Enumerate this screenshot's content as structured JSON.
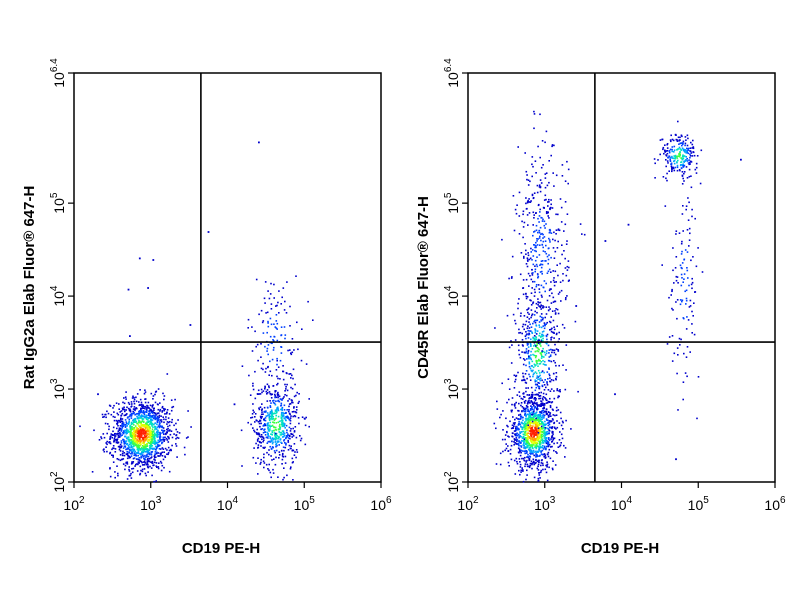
{
  "chart_data": [
    {
      "type": "scatter",
      "xlabel": "CD19 PE-H",
      "ylabel": "Rat IgG2a Elab Fluor® 647-H",
      "x_scale": "log",
      "y_scale": "log",
      "xlim": [
        100,
        1000000
      ],
      "ylim": [
        100,
        2511886
      ],
      "x_ticks": [
        {
          "base": "10",
          "exp": "2"
        },
        {
          "base": "10",
          "exp": "3"
        },
        {
          "base": "10",
          "exp": "4"
        },
        {
          "base": "10",
          "exp": "5"
        },
        {
          "base": "10",
          "exp": "6"
        }
      ],
      "y_ticks": [
        {
          "base": "10",
          "exp": "2"
        },
        {
          "base": "10",
          "exp": "3"
        },
        {
          "base": "10",
          "exp": "4"
        },
        {
          "base": "10",
          "exp": "5"
        },
        {
          "base": "10",
          "exp": "6.4"
        }
      ],
      "gate": {
        "x": 4500,
        "y": 3200
      },
      "populations": [
        {
          "x": 750,
          "y": 330,
          "spread_x_decades": 0.2,
          "spread_y_decades": 0.19,
          "count": 1400,
          "density": "high"
        },
        {
          "x": 42000,
          "y": 420,
          "spread_x_decades": 0.15,
          "spread_y_decades": 0.24,
          "count": 560,
          "density": "medium"
        },
        {
          "x": 40000,
          "y": 3500,
          "spread_x_decades": 0.18,
          "spread_y_decades": 0.35,
          "count": 140,
          "density": "low"
        }
      ],
      "outliers": [
        {
          "x": 25000,
          "y": 460000
        },
        {
          "x": 700,
          "y": 26000
        },
        {
          "x": 1050,
          "y": 25000
        },
        {
          "x": 5500,
          "y": 50000
        },
        {
          "x": 500,
          "y": 12000
        },
        {
          "x": 3200,
          "y": 5000
        },
        {
          "x": 520,
          "y": 3800
        },
        {
          "x": 900,
          "y": 12500
        },
        {
          "x": 12000,
          "y": 700
        },
        {
          "x": 200,
          "y": 900
        }
      ]
    },
    {
      "type": "scatter",
      "xlabel": "CD19 PE-H",
      "ylabel": "CD45R Elab Fluor® 647-H",
      "x_scale": "log",
      "y_scale": "log",
      "xlim": [
        100,
        1000000
      ],
      "ylim": [
        100,
        2511886
      ],
      "x_ticks": [
        {
          "base": "10",
          "exp": "2"
        },
        {
          "base": "10",
          "exp": "3"
        },
        {
          "base": "10",
          "exp": "4"
        },
        {
          "base": "10",
          "exp": "5"
        },
        {
          "base": "10",
          "exp": "6"
        }
      ],
      "y_ticks": [
        {
          "base": "10",
          "exp": "2"
        },
        {
          "base": "10",
          "exp": "3"
        },
        {
          "base": "10",
          "exp": "4"
        },
        {
          "base": "10",
          "exp": "5"
        },
        {
          "base": "10",
          "exp": "6.4"
        }
      ],
      "gate": {
        "x": 4500,
        "y": 3200
      },
      "populations": [
        {
          "x": 700,
          "y": 350,
          "spread_x_decades": 0.16,
          "spread_y_decades": 0.2,
          "count": 1100,
          "density": "high"
        },
        {
          "x": 800,
          "y": 2500,
          "spread_x_decades": 0.14,
          "spread_y_decades": 0.35,
          "count": 420,
          "density": "medium"
        },
        {
          "x": 900,
          "y": 30000,
          "spread_x_decades": 0.17,
          "spread_y_decades": 0.55,
          "count": 400,
          "density": "low"
        },
        {
          "x": 55000,
          "y": 330000,
          "spread_x_decades": 0.12,
          "spread_y_decades": 0.12,
          "count": 230,
          "density": "medium"
        },
        {
          "x": 65000,
          "y": 15000,
          "spread_x_decades": 0.1,
          "spread_y_decades": 0.5,
          "count": 120,
          "density": "low"
        }
      ],
      "outliers": [
        {
          "x": 350000,
          "y": 300000
        },
        {
          "x": 8000,
          "y": 900
        },
        {
          "x": 50000,
          "y": 180
        },
        {
          "x": 12000,
          "y": 60000
        },
        {
          "x": 6000,
          "y": 40000
        },
        {
          "x": 2500,
          "y": 8000
        }
      ]
    }
  ]
}
